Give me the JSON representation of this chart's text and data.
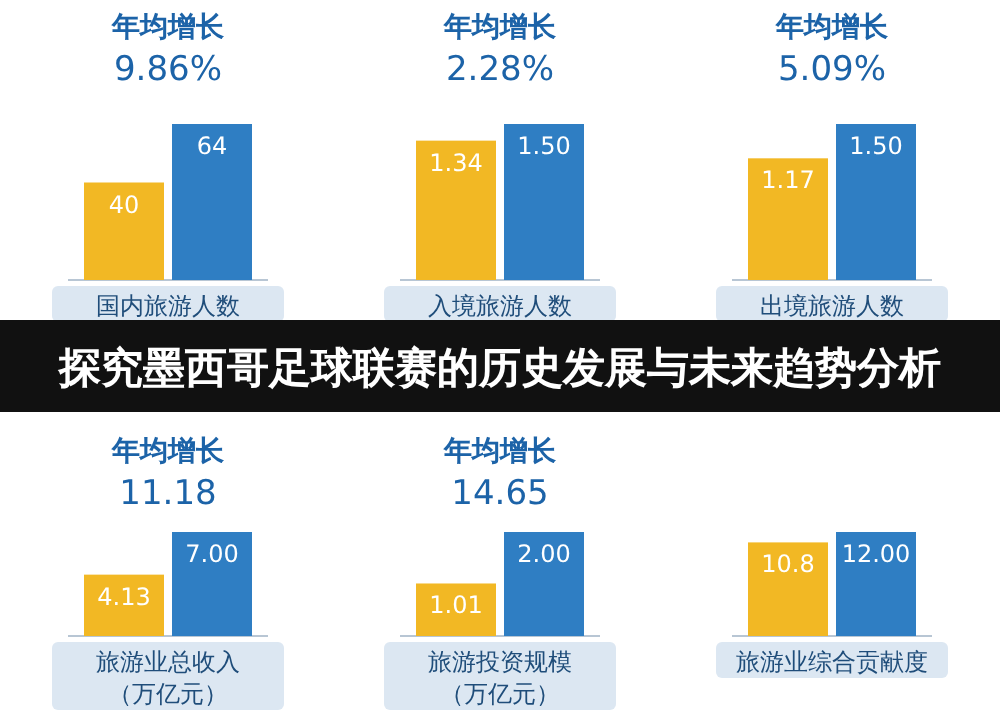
{
  "chart_data": [
    {
      "type": "bar",
      "title": "年均增长",
      "subtitle": "9.86%",
      "categories": [
        null,
        null
      ],
      "values": [
        40,
        64
      ],
      "colors": [
        "#f2b824",
        "#2f7ec3"
      ],
      "value_labels": [
        "40",
        "64"
      ],
      "xlabel": "国内旅游人数"
    },
    {
      "type": "bar",
      "title": "年均增长",
      "subtitle": "2.28%",
      "categories": [
        null,
        null
      ],
      "values": [
        1.34,
        1.5
      ],
      "colors": [
        "#f2b824",
        "#2f7ec3"
      ],
      "value_labels": [
        "1.34",
        "1.50"
      ],
      "xlabel": "入境旅游人数"
    },
    {
      "type": "bar",
      "title": "年均增长",
      "subtitle": "5.09%",
      "categories": [
        null,
        null
      ],
      "values": [
        1.17,
        1.5
      ],
      "colors": [
        "#f2b824",
        "#2f7ec3"
      ],
      "value_labels": [
        "1.17",
        "1.50"
      ],
      "xlabel": "出境旅游人数"
    },
    {
      "type": "bar",
      "title": "年均增长",
      "subtitle": "11.18",
      "categories": [
        null,
        null
      ],
      "values": [
        4.13,
        7
      ],
      "colors": [
        "#f2b824",
        "#2f7ec3"
      ],
      "value_labels": [
        "4.13",
        "7.00"
      ],
      "xlabel": "旅游业总收入",
      "annotations": [
        "（万亿元）"
      ]
    },
    {
      "type": "bar",
      "title": "年均增长",
      "subtitle": "14.65",
      "categories": [
        null,
        null
      ],
      "values": [
        1.01,
        2
      ],
      "colors": [
        "#f2b824",
        "#2f7ec3"
      ],
      "value_labels": [
        "1.01",
        "2.00"
      ],
      "xlabel": "旅游投资规模",
      "annotations": [
        "（万亿元）"
      ]
    },
    {
      "type": "bar",
      "categories": [
        null,
        null
      ],
      "values": [
        10.8,
        12
      ],
      "colors": [
        "#f2b824",
        "#2f7ec3"
      ],
      "value_labels": [
        "10.8",
        "12.00"
      ],
      "xlabel": "旅游业综合贡献度"
    },
    {
      "type": "other",
      "title": "探究墨西哥足球联赛的历史发展与未来趋势分析"
    }
  ]
}
